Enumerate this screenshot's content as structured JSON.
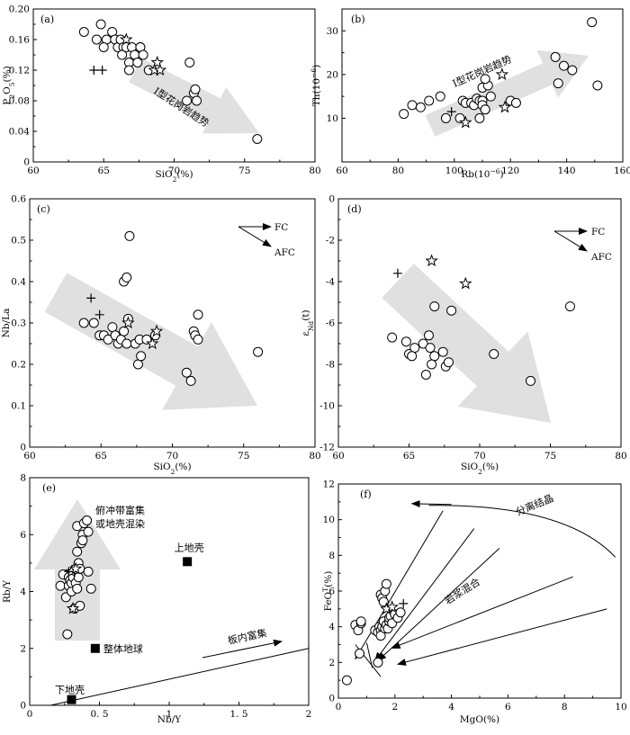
{
  "chart_data": [
    {
      "panel_label": "(a)",
      "type": "scatter",
      "xlabel": "SiO2(%)",
      "ylabel": "P2O5(%)",
      "xlim": [
        60,
        80
      ],
      "ylim": [
        0,
        0.2
      ],
      "xticks": [
        60,
        65,
        70,
        75,
        80
      ],
      "yticks": [
        0,
        0.04,
        0.08,
        0.12,
        0.16,
        0.2
      ],
      "ytick_labels": [
        "0",
        "0.04",
        "0.08",
        "0.12",
        "0.16",
        "0.20"
      ],
      "trend_label": "I型花岗岩趋势",
      "series": [
        {
          "marker": "circle",
          "points": [
            [
              63.6,
              0.17
            ],
            [
              64.5,
              0.16
            ],
            [
              64.8,
              0.18
            ],
            [
              65.2,
              0.16
            ],
            [
              65.0,
              0.15
            ],
            [
              65.6,
              0.17
            ],
            [
              65.8,
              0.16
            ],
            [
              66.0,
              0.15
            ],
            [
              66.2,
              0.16
            ],
            [
              66.4,
              0.15
            ],
            [
              66.3,
              0.14
            ],
            [
              66.6,
              0.15
            ],
            [
              66.8,
              0.13
            ],
            [
              66.8,
              0.12
            ],
            [
              67.0,
              0.15
            ],
            [
              67.2,
              0.14
            ],
            [
              67.4,
              0.13
            ],
            [
              67.6,
              0.15
            ],
            [
              67.6,
              0.15
            ],
            [
              67.8,
              0.14
            ],
            [
              68.2,
              0.12
            ],
            [
              70.9,
              0.08
            ],
            [
              71.1,
              0.13
            ],
            [
              71.4,
              0.09
            ],
            [
              71.5,
              0.095
            ],
            [
              71.6,
              0.08
            ],
            [
              75.9,
              0.03
            ]
          ]
        },
        {
          "marker": "star",
          "points": [
            [
              66.6,
              0.16
            ],
            [
              68.8,
              0.13
            ],
            [
              68.6,
              0.12
            ],
            [
              69.0,
              0.12
            ]
          ]
        },
        {
          "marker": "plus",
          "points": [
            [
              64.3,
              0.12
            ],
            [
              64.9,
              0.12
            ]
          ]
        }
      ]
    },
    {
      "panel_label": "(b)",
      "type": "scatter",
      "xlabel": "Rb(10⁻⁶)",
      "ylabel": "Th(10⁻⁶)",
      "xlim": [
        60,
        160
      ],
      "ylim": [
        0,
        35
      ],
      "xticks": [
        60,
        80,
        100,
        120,
        140,
        160
      ],
      "yticks": [
        10,
        20,
        30
      ],
      "trend_label": "I型花岗岩趋势",
      "series": [
        {
          "marker": "circle",
          "points": [
            [
              82,
              11
            ],
            [
              85,
              13
            ],
            [
              88,
              12.5
            ],
            [
              91,
              14
            ],
            [
              95,
              15
            ],
            [
              97,
              10
            ],
            [
              102,
              10
            ],
            [
              103,
              14
            ],
            [
              104,
              13.5
            ],
            [
              106,
              13.5
            ],
            [
              107,
              13
            ],
            [
              108,
              14.5
            ],
            [
              109,
              14
            ],
            [
              109,
              10
            ],
            [
              110,
              17
            ],
            [
              110,
              14
            ],
            [
              110,
              13
            ],
            [
              111,
              12
            ],
            [
              111,
              12
            ],
            [
              112,
              17.5
            ],
            [
              111,
              19
            ],
            [
              113,
              15
            ],
            [
              120,
              14
            ],
            [
              122,
              13.5
            ],
            [
              136,
              24
            ],
            [
              137,
              18
            ],
            [
              139,
              22
            ],
            [
              142,
              21
            ],
            [
              149,
              32
            ],
            [
              151,
              17.5
            ]
          ]
        },
        {
          "marker": "star",
          "points": [
            [
              104,
              9
            ],
            [
              117,
              20
            ],
            [
              118,
              12.5
            ]
          ]
        },
        {
          "marker": "plus",
          "points": [
            [
              99,
              11.5
            ]
          ]
        }
      ]
    },
    {
      "panel_label": "(c)",
      "type": "scatter",
      "xlabel": "SiO2(%)",
      "ylabel": "Nb/La",
      "xlim": [
        60,
        80
      ],
      "ylim": [
        0,
        0.6
      ],
      "xticks": [
        60,
        65,
        70,
        75,
        80
      ],
      "yticks": [
        0,
        0.1,
        0.2,
        0.3,
        0.4,
        0.5,
        0.6
      ],
      "legend_arrows": [
        "FC",
        "AFC"
      ],
      "series": [
        {
          "marker": "circle",
          "points": [
            [
              63.8,
              0.3
            ],
            [
              64.5,
              0.3
            ],
            [
              64.9,
              0.27
            ],
            [
              65.2,
              0.27
            ],
            [
              65.5,
              0.26
            ],
            [
              65.8,
              0.29
            ],
            [
              66.0,
              0.27
            ],
            [
              66.2,
              0.25
            ],
            [
              66.4,
              0.26
            ],
            [
              66.6,
              0.28
            ],
            [
              66.6,
              0.4
            ],
            [
              66.8,
              0.41
            ],
            [
              66.8,
              0.25
            ],
            [
              66.9,
              0.31
            ],
            [
              67.0,
              0.51
            ],
            [
              67.4,
              0.25
            ],
            [
              67.6,
              0.2
            ],
            [
              67.8,
              0.22
            ],
            [
              67.7,
              0.26
            ],
            [
              68.2,
              0.26
            ],
            [
              68.8,
              0.27
            ],
            [
              71.0,
              0.18
            ],
            [
              71.3,
              0.16
            ],
            [
              71.5,
              0.28
            ],
            [
              71.6,
              0.27
            ],
            [
              71.8,
              0.26
            ],
            [
              71.8,
              0.32
            ],
            [
              76.0,
              0.23
            ]
          ]
        },
        {
          "marker": "star",
          "points": [
            [
              66.9,
              0.3
            ],
            [
              68.9,
              0.28
            ],
            [
              68.6,
              0.25
            ]
          ]
        },
        {
          "marker": "plus",
          "points": [
            [
              64.3,
              0.36
            ],
            [
              64.9,
              0.32
            ]
          ]
        }
      ]
    },
    {
      "panel_label": "(d)",
      "type": "scatter",
      "xlabel": "SiO2(%)",
      "ylabel": "εNd(t)",
      "xlim": [
        60,
        80
      ],
      "ylim": [
        -12,
        0
      ],
      "xticks": [
        60,
        65,
        70,
        75,
        80
      ],
      "yticks": [
        -12,
        -10,
        -8,
        -6,
        -4,
        -2,
        0
      ],
      "legend_arrows": [
        "FC",
        "AFC"
      ],
      "series": [
        {
          "marker": "circle",
          "points": [
            [
              63.8,
              -6.7
            ],
            [
              64.8,
              -6.9
            ],
            [
              65.0,
              -7.5
            ],
            [
              65.4,
              -7.2
            ],
            [
              65.2,
              -7.6
            ],
            [
              66.0,
              -7.0
            ],
            [
              66.2,
              -8.5
            ],
            [
              66.4,
              -6.6
            ],
            [
              66.5,
              -7.2
            ],
            [
              66.8,
              -7.6
            ],
            [
              66.6,
              -8.0
            ],
            [
              66.8,
              -5.2
            ],
            [
              67.4,
              -7.4
            ],
            [
              67.6,
              -8.1
            ],
            [
              67.8,
              -7.9
            ],
            [
              68.0,
              -5.4
            ],
            [
              71.0,
              -7.5
            ],
            [
              73.6,
              -8.8
            ],
            [
              76.4,
              -5.2
            ]
          ]
        },
        {
          "marker": "star",
          "points": [
            [
              66.6,
              -3.0
            ],
            [
              69.0,
              -4.1
            ]
          ]
        },
        {
          "marker": "plus",
          "points": [
            [
              64.2,
              -3.6
            ]
          ]
        }
      ]
    },
    {
      "panel_label": "(e)",
      "type": "scatter",
      "xlabel": "Nb/Y",
      "ylabel": "Rb/Y",
      "xlim": [
        0,
        2
      ],
      "ylim": [
        0,
        8
      ],
      "xticks": [
        0,
        0.5,
        1,
        1.5,
        2
      ],
      "yticks": [
        0,
        2,
        4,
        6,
        8
      ],
      "xtick_labels": [
        "0",
        "0. 5",
        "1",
        "1. 5",
        "2"
      ],
      "annotations": [
        "俯冲带富集",
        "或地壳混染",
        "板内富集"
      ],
      "reference_points": [
        {
          "label": "上地壳",
          "x": 1.13,
          "y": 5.05
        },
        {
          "label": "整体地球",
          "x": 0.47,
          "y": 2.0
        },
        {
          "label": "下地壳",
          "x": 0.3,
          "y": 0.2
        }
      ],
      "series": [
        {
          "marker": "circle",
          "points": [
            [
              0.22,
              4.2
            ],
            [
              0.24,
              4.6
            ],
            [
              0.26,
              3.8
            ],
            [
              0.27,
              2.5
            ],
            [
              0.28,
              4.5
            ],
            [
              0.28,
              4.2
            ],
            [
              0.29,
              4.4
            ],
            [
              0.3,
              4.0
            ],
            [
              0.3,
              4.3
            ],
            [
              0.31,
              4.5
            ],
            [
              0.32,
              3.4
            ],
            [
              0.33,
              4.3
            ],
            [
              0.33,
              4.8
            ],
            [
              0.34,
              4.1
            ],
            [
              0.34,
              5.4
            ],
            [
              0.35,
              4.5
            ],
            [
              0.35,
              5.0
            ],
            [
              0.36,
              4.8
            ],
            [
              0.34,
              6.3
            ],
            [
              0.36,
              3.5
            ],
            [
              0.37,
              5.7
            ],
            [
              0.38,
              6.0
            ],
            [
              0.38,
              5.8
            ],
            [
              0.39,
              6.4
            ],
            [
              0.41,
              6.5
            ],
            [
              0.42,
              4.7
            ],
            [
              0.42,
              6.1
            ],
            [
              0.44,
              4.1
            ]
          ]
        },
        {
          "marker": "star",
          "points": [
            [
              0.3,
              4.7
            ],
            [
              0.31,
              3.4
            ],
            [
              0.33,
              4.8
            ]
          ]
        },
        {
          "marker": "plus",
          "points": [
            [
              0.28,
              4.7
            ]
          ]
        }
      ]
    },
    {
      "panel_label": "(f)",
      "type": "scatter",
      "xlabel": "MgO(%)",
      "ylabel": "FeOT(%)",
      "xlim": [
        0,
        10
      ],
      "ylim": [
        0,
        12
      ],
      "xticks": [
        0,
        2,
        4,
        6,
        8,
        10
      ],
      "yticks": [
        0,
        2,
        4,
        6,
        8,
        10,
        12
      ],
      "annotations": [
        "分离结晶",
        "岩浆混合"
      ],
      "series": [
        {
          "marker": "circle",
          "points": [
            [
              0.3,
              1.0
            ],
            [
              0.6,
              4.1
            ],
            [
              0.7,
              3.8
            ],
            [
              0.75,
              2.5
            ],
            [
              0.8,
              4.2
            ],
            [
              0.8,
              4.3
            ],
            [
              1.3,
              3.8
            ],
            [
              1.4,
              2.0
            ],
            [
              1.4,
              3.7
            ],
            [
              1.45,
              4.0
            ],
            [
              1.5,
              3.8
            ],
            [
              1.5,
              3.5
            ],
            [
              1.5,
              5.8
            ],
            [
              1.55,
              4.0
            ],
            [
              1.55,
              5.6
            ],
            [
              1.6,
              4.3
            ],
            [
              1.6,
              5.4
            ],
            [
              1.65,
              3.9
            ],
            [
              1.65,
              6.0
            ],
            [
              1.7,
              6.4
            ],
            [
              1.7,
              4.1
            ],
            [
              1.75,
              3.9
            ],
            [
              1.8,
              4.3
            ],
            [
              1.8,
              4.5
            ],
            [
              1.85,
              4.6
            ],
            [
              1.9,
              4.2
            ],
            [
              2.0,
              4.7
            ],
            [
              2.1,
              4.5
            ],
            [
              2.2,
              4.8
            ]
          ]
        },
        {
          "marker": "star",
          "points": [
            [
              1.7,
              5.0
            ],
            [
              1.9,
              5.1
            ]
          ]
        },
        {
          "marker": "plus",
          "points": [
            [
              2.3,
              5.3
            ]
          ]
        }
      ]
    }
  ]
}
